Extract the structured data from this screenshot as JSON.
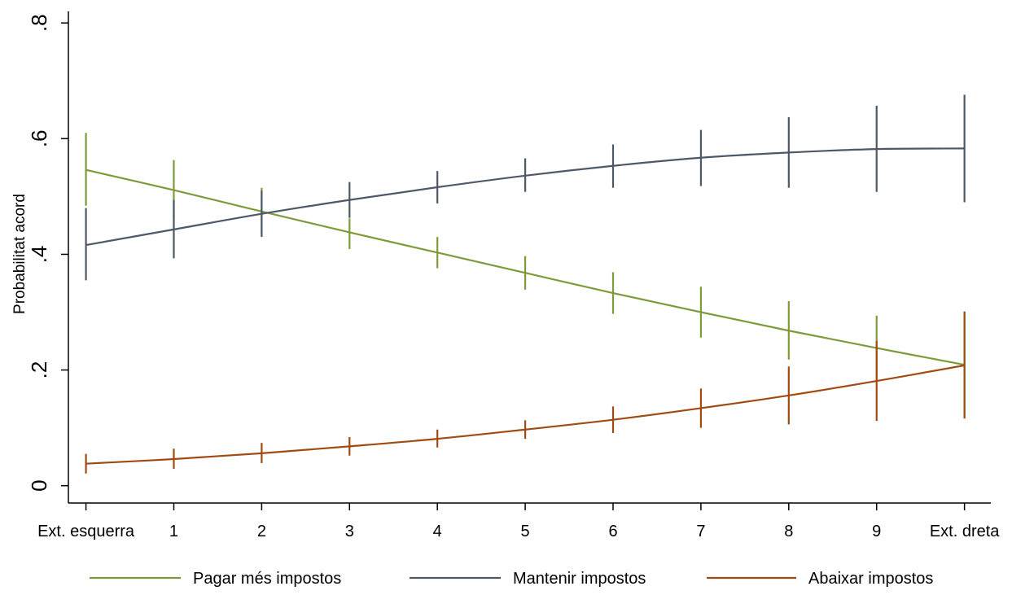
{
  "chart_data": {
    "type": "line",
    "title": "",
    "xlabel": "",
    "ylabel": "Probabilitat acord",
    "x": [
      0,
      1,
      2,
      3,
      4,
      5,
      6,
      7,
      8,
      9,
      10
    ],
    "xtick_labels": [
      "Ext. esquerra",
      "1",
      "2",
      "3",
      "4",
      "5",
      "6",
      "7",
      "8",
      "9",
      "Ext. dreta"
    ],
    "yticks": [
      0,
      0.2,
      0.4,
      0.6,
      0.8
    ],
    "ytick_labels": [
      "0",
      ".2",
      ".4",
      ".6",
      ".8"
    ],
    "xlim": [
      -0.2,
      10.3
    ],
    "ylim": [
      -0.03,
      0.82
    ],
    "grid": false,
    "legend": "bottom",
    "series": [
      {
        "name": "Pagar més impostos",
        "color": "#7d9b3a",
        "values": [
          0.546,
          0.511,
          0.474,
          0.438,
          0.403,
          0.368,
          0.333,
          0.3,
          0.268,
          0.238,
          0.209
        ],
        "ci_low": [
          0.484,
          0.46,
          0.434,
          0.409,
          0.376,
          0.339,
          0.297,
          0.256,
          0.218,
          0.182,
          0.117
        ],
        "ci_high": [
          0.61,
          0.563,
          0.515,
          0.462,
          0.43,
          0.397,
          0.369,
          0.344,
          0.319,
          0.294,
          0.301
        ]
      },
      {
        "name": "Mantenir impostos",
        "color": "#4d5966",
        "values": [
          0.416,
          0.443,
          0.47,
          0.494,
          0.516,
          0.536,
          0.553,
          0.567,
          0.576,
          0.582,
          0.583
        ],
        "ci_low": [
          0.355,
          0.393,
          0.43,
          0.463,
          0.488,
          0.508,
          0.515,
          0.518,
          0.515,
          0.508,
          0.49
        ],
        "ci_high": [
          0.48,
          0.494,
          0.51,
          0.525,
          0.544,
          0.566,
          0.59,
          0.615,
          0.637,
          0.657,
          0.676
        ]
      },
      {
        "name": "Abaixar impostos",
        "color": "#a04b12",
        "values": [
          0.038,
          0.046,
          0.056,
          0.068,
          0.081,
          0.097,
          0.114,
          0.134,
          0.156,
          0.181,
          0.208
        ],
        "ci_low": [
          0.021,
          0.029,
          0.039,
          0.052,
          0.066,
          0.081,
          0.091,
          0.1,
          0.106,
          0.112,
          0.116
        ],
        "ci_high": [
          0.055,
          0.064,
          0.074,
          0.084,
          0.097,
          0.113,
          0.137,
          0.168,
          0.206,
          0.25,
          0.301
        ]
      }
    ]
  }
}
